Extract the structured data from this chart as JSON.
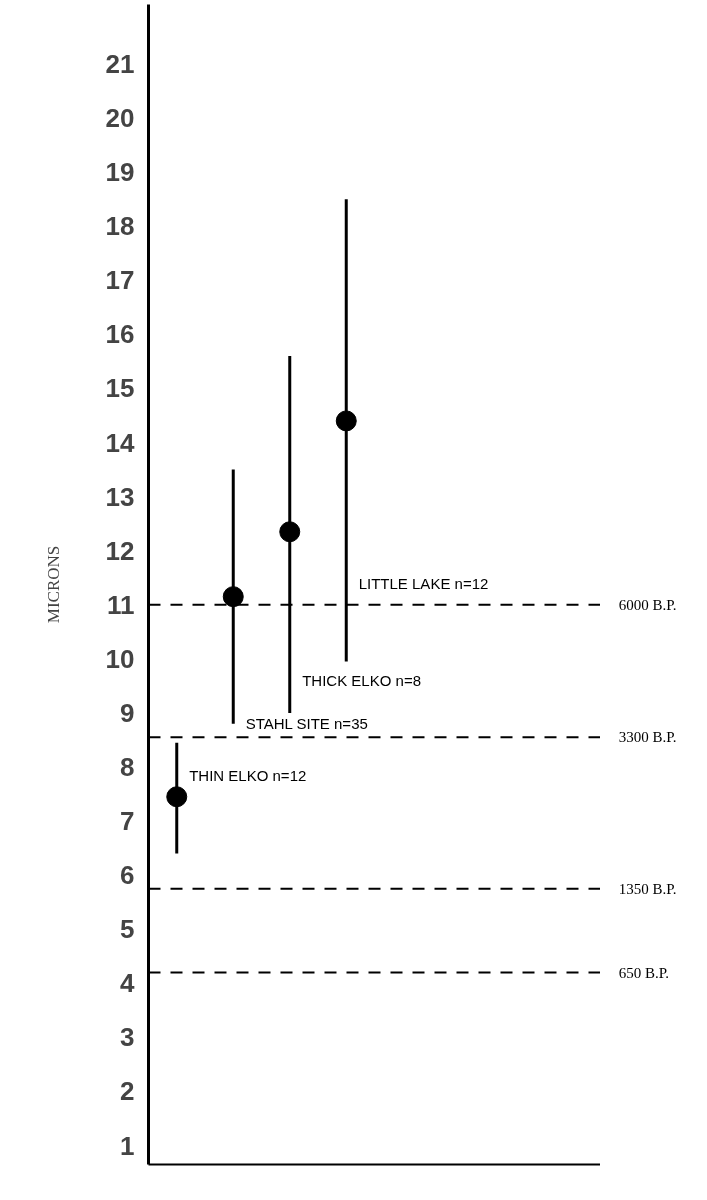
{
  "chart_data": {
    "type": "scatter",
    "ylabel": "MICRONS",
    "categories": [
      null,
      null,
      null,
      null,
      null,
      null,
      null,
      null
    ],
    "series": [
      {
        "name": "THIN ELKO n=12",
        "color": "#000000",
        "values": [
          7.45,
          null,
          null,
          null,
          null,
          null,
          null,
          null
        ],
        "errors": [
          [
            6.4,
            8.45
          ],
          null,
          null,
          null,
          null,
          null,
          null,
          null
        ]
      },
      {
        "name": "STAHL SITE  n=35",
        "color": "#000000",
        "values": [
          null,
          11.15,
          null,
          null,
          null,
          null,
          null,
          null
        ],
        "errors": [
          null,
          [
            8.8,
            13.5
          ],
          null,
          null,
          null,
          null,
          null,
          null
        ]
      },
      {
        "name": "THICK ELKO n=8",
        "color": "#000000",
        "values": [
          null,
          null,
          12.35,
          null,
          null,
          null,
          null,
          null
        ],
        "errors": [
          null,
          null,
          [
            9.0,
            15.6
          ],
          null,
          null,
          null,
          null,
          null
        ]
      },
      {
        "name": "LITTLE LAKE n=12",
        "color": "#000000",
        "values": [
          null,
          null,
          null,
          14.4,
          null,
          null,
          null,
          null
        ],
        "errors": [
          null,
          null,
          null,
          [
            9.95,
            18.5
          ],
          null,
          null,
          null,
          null
        ]
      }
    ],
    "marker": "circle",
    "ylim": [
      0.65,
      22.1
    ],
    "yticks": [
      1,
      2,
      3,
      4,
      5,
      6,
      7,
      8,
      9,
      10,
      11,
      12,
      13,
      14,
      15,
      16,
      17,
      18,
      19,
      20,
      21
    ],
    "ref_lines": [
      {
        "axis": "y",
        "value": 11.0,
        "label": "6000 B.P.",
        "line_style": "dashed"
      },
      {
        "axis": "y",
        "value": 8.55,
        "label": "3300 B.P.",
        "line_style": "dashed"
      },
      {
        "axis": "y",
        "value": 5.75,
        "label": "1350 B.P.",
        "line_style": "dashed"
      },
      {
        "axis": "y",
        "value": 4.2,
        "label": "650 B.P.",
        "line_style": "dashed"
      }
    ],
    "tick_labels": "y",
    "grid": false,
    "legend": false
  }
}
